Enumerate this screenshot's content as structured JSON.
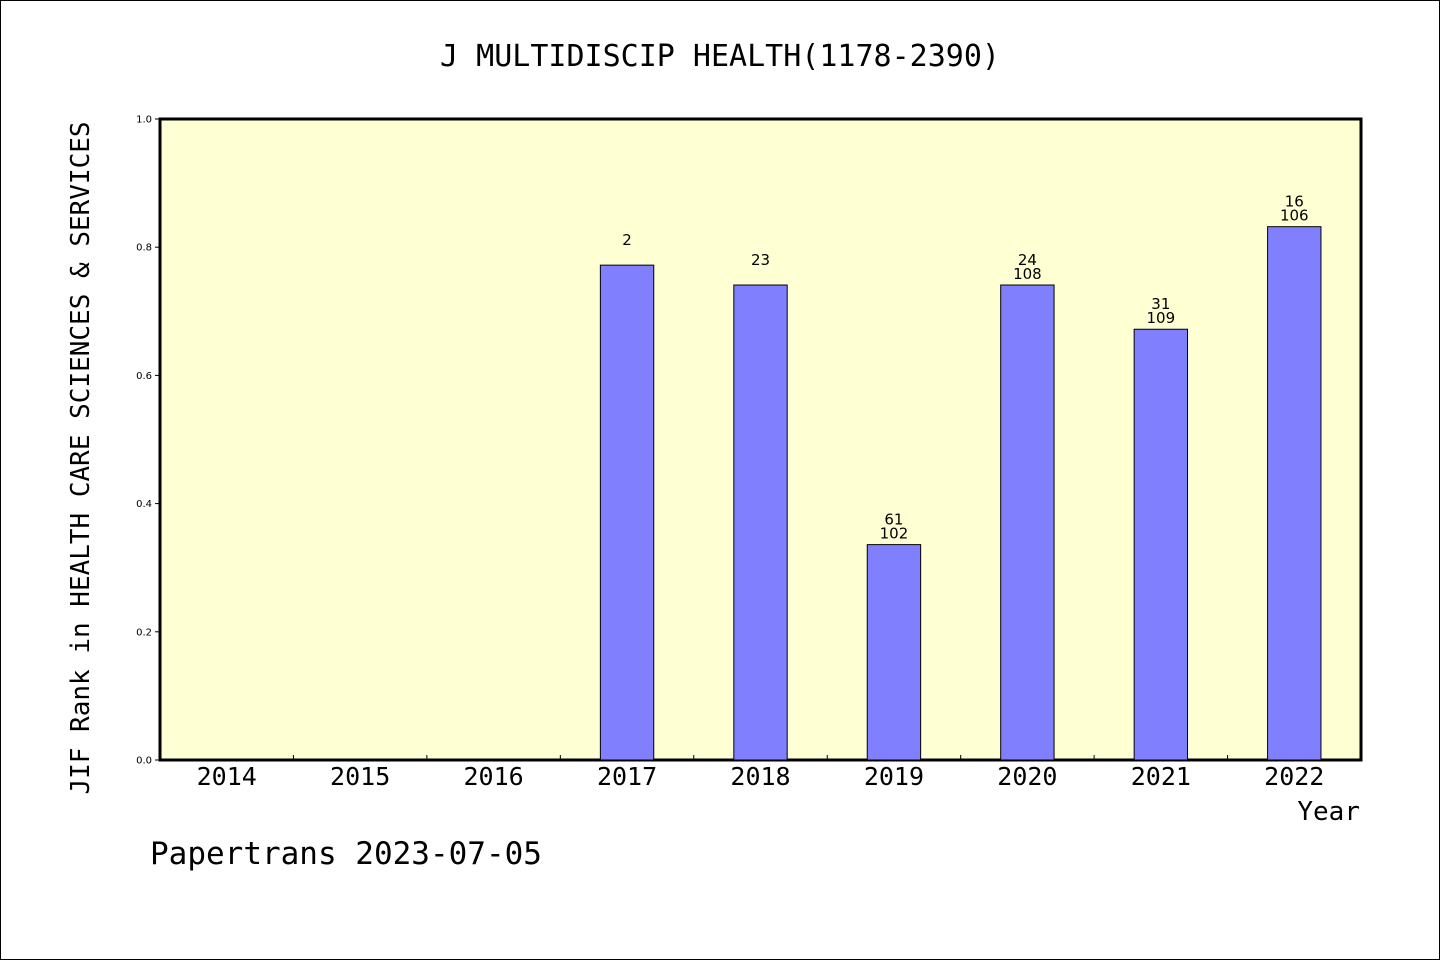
{
  "chart_data": {
    "type": "bar",
    "title": "J MULTIDISCIP HEALTH(1178-2390)",
    "xlabel": "Year",
    "ylabel": "JIF Rank in HEALTH CARE SCIENCES & SERVICES",
    "categories": [
      "2014",
      "2015",
      "2016",
      "2017",
      "2018",
      "2019",
      "2020",
      "2021",
      "2022"
    ],
    "values": [
      null,
      null,
      null,
      0.772,
      0.741,
      0.336,
      0.741,
      0.672,
      0.832
    ],
    "labels_top": [
      null,
      null,
      null,
      "2",
      "23",
      "61",
      "24",
      "31",
      "16"
    ],
    "labels_bottom": [
      null,
      null,
      null,
      null,
      null,
      "102",
      "108",
      "109",
      "106"
    ],
    "ylim": [
      0,
      1.0
    ],
    "yticks": [
      "0.0",
      "0.2",
      "0.4",
      "0.6",
      "0.8",
      "1.0"
    ],
    "ytick_values": [
      0,
      0.2,
      0.4,
      0.6,
      0.8,
      1.0
    ],
    "grid": false,
    "plot_background": "#ffffd4",
    "bar_color": "#8080ff"
  },
  "footer": "Papertrans 2023-07-05"
}
